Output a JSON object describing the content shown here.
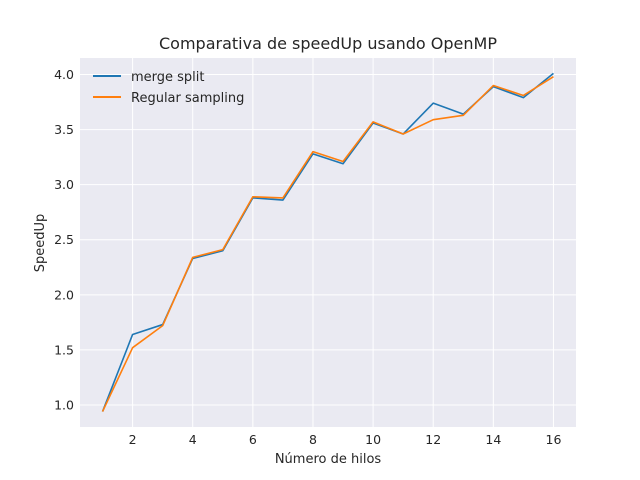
{
  "chart_data": {
    "type": "line",
    "title": "Comparativa de speedUp usando OpenMP",
    "xlabel": "Número de hilos",
    "ylabel": "SpeedUp",
    "x": [
      1,
      2,
      3,
      4,
      5,
      6,
      7,
      8,
      9,
      10,
      11,
      12,
      13,
      14,
      15,
      16
    ],
    "xlim": [
      0.25,
      16.75
    ],
    "ylim": [
      0.8,
      4.15
    ],
    "xticks": [
      "2",
      "4",
      "6",
      "8",
      "10",
      "12",
      "14",
      "16"
    ],
    "yticks": [
      "1.0",
      "1.5",
      "2.0",
      "2.5",
      "3.0",
      "3.5",
      "4.0"
    ],
    "grid": true,
    "legend_position": "top-left",
    "series": [
      {
        "name": "merge split",
        "color": "#1f77b4",
        "values": [
          0.94,
          1.64,
          1.73,
          2.33,
          2.4,
          2.88,
          2.86,
          3.28,
          3.19,
          3.56,
          3.46,
          3.74,
          3.64,
          3.89,
          3.79,
          4.01
        ]
      },
      {
        "name": "Regular sampling",
        "color": "#ff7f0e",
        "values": [
          0.94,
          1.52,
          1.72,
          2.34,
          2.41,
          2.89,
          2.88,
          3.3,
          3.21,
          3.57,
          3.46,
          3.59,
          3.63,
          3.9,
          3.81,
          3.98
        ]
      }
    ]
  }
}
